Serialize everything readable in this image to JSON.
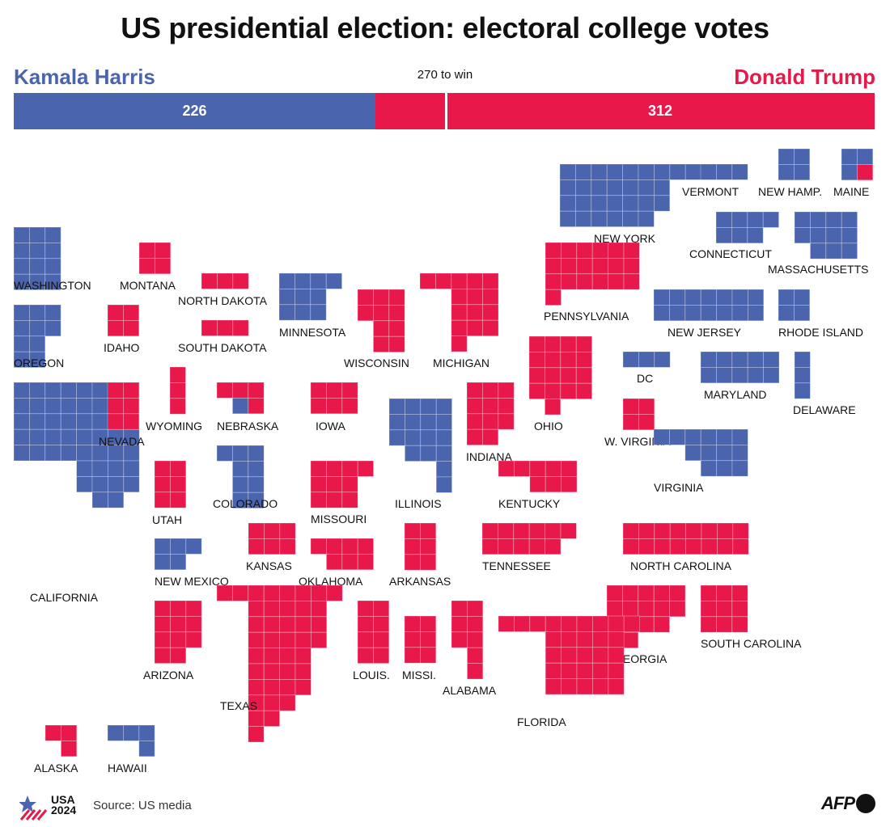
{
  "title": "US presidential election: electoral college votes",
  "win_label": "270 to win",
  "source": "Source: US media",
  "logo": {
    "line1": "USA",
    "line2": "2024"
  },
  "afp_label": "AFP",
  "colors": {
    "dem": "#4a64ae",
    "rep": "#e8194a"
  },
  "chart_data": {
    "type": "tile-cartogram",
    "total": 538,
    "threshold": 270,
    "candidates": [
      {
        "name": "Kamala Harris",
        "party": "dem",
        "votes": 226
      },
      {
        "name": "Donald Trump",
        "party": "rep",
        "votes": 312
      }
    ],
    "states": [
      {
        "label": "WASHINGTON",
        "dem": 12,
        "rep": 0
      },
      {
        "label": "OREGON",
        "dem": 8,
        "rep": 0
      },
      {
        "label": "CALIFORNIA",
        "dem": 54,
        "rep": 0
      },
      {
        "label": "MONTANA",
        "dem": 0,
        "rep": 4
      },
      {
        "label": "IDAHO",
        "dem": 0,
        "rep": 4
      },
      {
        "label": "NEVADA",
        "dem": 0,
        "rep": 6
      },
      {
        "label": "WYOMING",
        "dem": 0,
        "rep": 3
      },
      {
        "label": "UTAH",
        "dem": 0,
        "rep": 6
      },
      {
        "label": "ARIZONA",
        "dem": 0,
        "rep": 11
      },
      {
        "label": "NORTH DAKOTA",
        "dem": 0,
        "rep": 3
      },
      {
        "label": "SOUTH DAKOTA",
        "dem": 0,
        "rep": 3
      },
      {
        "label": "NEBRASKA",
        "dem": 1,
        "rep": 4
      },
      {
        "label": "COLORADO",
        "dem": 10,
        "rep": 0
      },
      {
        "label": "NEW MEXICO",
        "dem": 5,
        "rep": 0
      },
      {
        "label": "KANSAS",
        "dem": 0,
        "rep": 6
      },
      {
        "label": "OKLAHOMA",
        "dem": 0,
        "rep": 7
      },
      {
        "label": "TEXAS",
        "dem": 0,
        "rep": 40
      },
      {
        "label": "MINNESOTA",
        "dem": 10,
        "rep": 0
      },
      {
        "label": "IOWA",
        "dem": 0,
        "rep": 6
      },
      {
        "label": "MISSOURI",
        "dem": 0,
        "rep": 10
      },
      {
        "label": "ARKANSAS",
        "dem": 0,
        "rep": 6
      },
      {
        "label": "LOUIS.",
        "dem": 0,
        "rep": 8
      },
      {
        "label": "WISCONSIN",
        "dem": 0,
        "rep": 10
      },
      {
        "label": "ILLINOIS",
        "dem": 19,
        "rep": 0
      },
      {
        "label": "MISSI.",
        "dem": 0,
        "rep": 6
      },
      {
        "label": "MICHIGAN",
        "dem": 0,
        "rep": 15
      },
      {
        "label": "INDIANA",
        "dem": 0,
        "rep": 11
      },
      {
        "label": "KENTUCKY",
        "dem": 0,
        "rep": 8
      },
      {
        "label": "TENNESSEE",
        "dem": 0,
        "rep": 11
      },
      {
        "label": "ALABAMA",
        "dem": 0,
        "rep": 9
      },
      {
        "label": "OHIO",
        "dem": 0,
        "rep": 17
      },
      {
        "label": "GEORGIA",
        "dem": 0,
        "rep": 16
      },
      {
        "label": "FLORIDA",
        "dem": 0,
        "rep": 30
      },
      {
        "label": "PENNSYLVANIA",
        "dem": 0,
        "rep": 19
      },
      {
        "label": "W. VIRGINIA",
        "dem": 0,
        "rep": 4
      },
      {
        "label": "VIRGINIA",
        "dem": 13,
        "rep": 0
      },
      {
        "label": "NORTH CAROLINA",
        "dem": 0,
        "rep": 16
      },
      {
        "label": "SOUTH CAROLINA",
        "dem": 0,
        "rep": 9
      },
      {
        "label": "NEW YORK",
        "dem": 28,
        "rep": 0
      },
      {
        "label": "NEW JERSEY",
        "dem": 14,
        "rep": 0
      },
      {
        "label": "DC",
        "dem": 3,
        "rep": 0
      },
      {
        "label": "MARYLAND",
        "dem": 10,
        "rep": 0
      },
      {
        "label": "DELAWARE",
        "dem": 3,
        "rep": 0
      },
      {
        "label": "VERMONT",
        "dem": 3,
        "rep": 0
      },
      {
        "label": "NEW HAMP.",
        "dem": 4,
        "rep": 0
      },
      {
        "label": "MAINE",
        "dem": 3,
        "rep": 1
      },
      {
        "label": "CONNECTICUT",
        "dem": 7,
        "rep": 0
      },
      {
        "label": "MASSACHUSETTS",
        "dem": 11,
        "rep": 0
      },
      {
        "label": "RHODE ISLAND",
        "dem": 4,
        "rep": 0
      },
      {
        "label": "ALASKA",
        "dem": 0,
        "rep": 3
      },
      {
        "label": "HAWAII",
        "dem": 4,
        "rep": 0
      }
    ]
  }
}
